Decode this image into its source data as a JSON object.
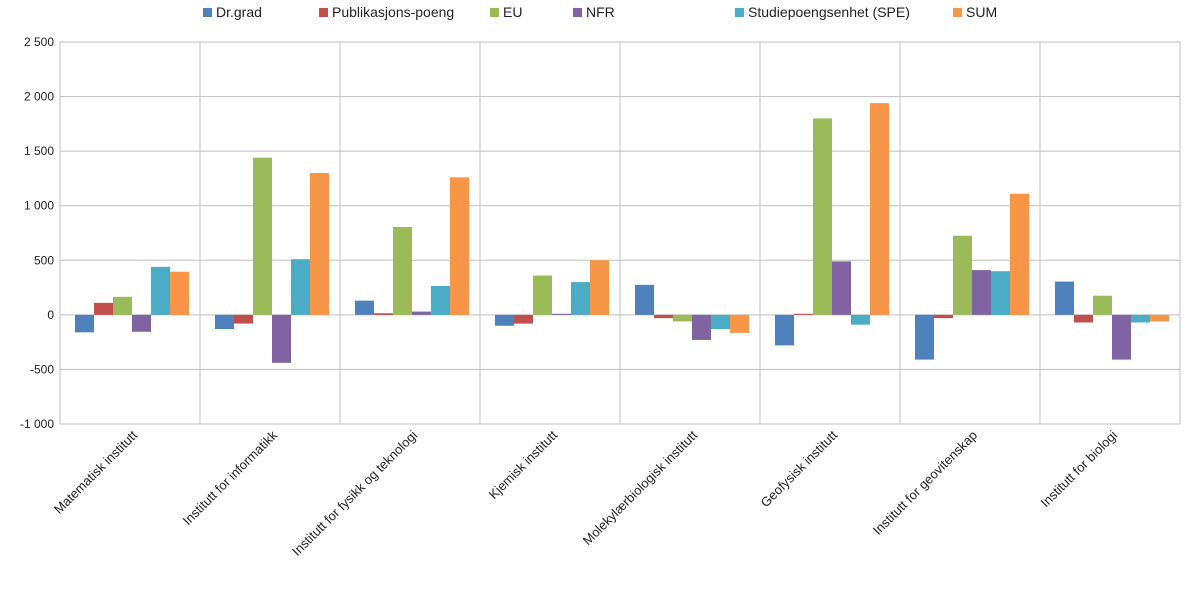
{
  "chart_data": {
    "type": "bar",
    "title": "",
    "xlabel": "",
    "ylabel": "",
    "ylim": [
      -1000,
      2500
    ],
    "yticks": [
      2500,
      2000,
      1500,
      1000,
      500,
      0,
      -500,
      -1000
    ],
    "ytick_labels": [
      "2 500",
      "2 000",
      "1 500",
      "1 000",
      "500",
      "0",
      "-500",
      "-1 000"
    ],
    "grid": "horizontal and vertical category separators",
    "legend_position": "top",
    "categories": [
      "Matematisk institutt",
      "Institutt for informatikk",
      "Institutt for fysikk og teknologi",
      "Kjemisk institutt",
      "Molekylærbiologisk institutt",
      "Geofysisk institutt",
      "Institutt for geovitenskap",
      "Institutt for biologi"
    ],
    "series": [
      {
        "name": "Dr.grad",
        "color": "#4F81BD",
        "values": [
          -160,
          -130,
          130,
          -100,
          275,
          -280,
          -410,
          305
        ]
      },
      {
        "name": "Publikasjons-poeng",
        "color": "#C0504D",
        "values": [
          110,
          -80,
          15,
          -80,
          -30,
          10,
          -30,
          -70
        ]
      },
      {
        "name": "EU",
        "color": "#9BBB59",
        "values": [
          165,
          1440,
          805,
          360,
          -60,
          1800,
          725,
          175
        ]
      },
      {
        "name": "NFR",
        "color": "#8064A2",
        "values": [
          -155,
          -440,
          30,
          10,
          -230,
          490,
          410,
          -410
        ]
      },
      {
        "name": "Studiepoengsenhet (SPE)",
        "color": "#4BACC6",
        "values": [
          440,
          510,
          265,
          300,
          -130,
          -90,
          400,
          -70
        ]
      },
      {
        "name": "SUM",
        "color": "#F79646",
        "values": [
          395,
          1300,
          1260,
          500,
          -165,
          1940,
          1110,
          -60
        ]
      }
    ]
  }
}
